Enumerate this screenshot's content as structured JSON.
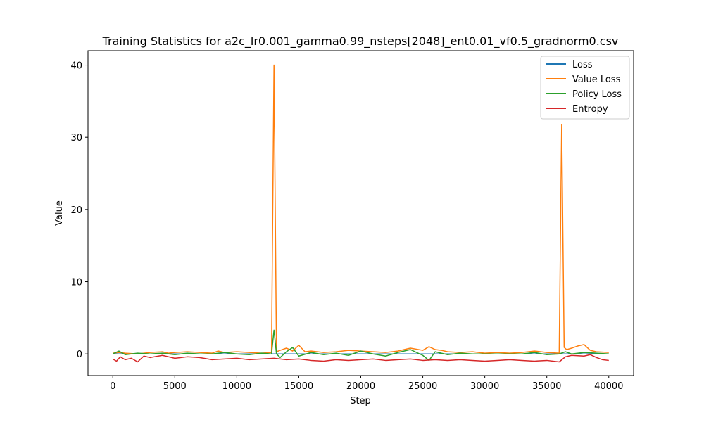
{
  "chart_data": {
    "type": "line",
    "title": "Training Statistics for a2c_lr0.001_gamma0.99_nsteps[2048]_ent0.01_vf0.5_gradnorm0.csv",
    "xlabel": "Step",
    "ylabel": "Value",
    "xlim": [
      -2000,
      42000
    ],
    "ylim": [
      -3,
      42
    ],
    "xticks": [
      0,
      5000,
      10000,
      15000,
      20000,
      25000,
      30000,
      35000,
      40000
    ],
    "yticks": [
      0,
      10,
      20,
      30,
      40
    ],
    "grid": false,
    "legend_position": "top-right",
    "series": [
      {
        "name": "Loss",
        "color": "#1f77b4",
        "x": [
          0,
          13000,
          13100,
          13300,
          15000,
          36000,
          36200,
          36400,
          38000,
          40000
        ],
        "y": [
          0,
          0,
          0,
          0,
          0,
          0,
          0,
          0,
          0,
          0
        ]
      },
      {
        "name": "Value Loss",
        "color": "#ff7f0e",
        "x": [
          0,
          500,
          1000,
          2000,
          3000,
          4000,
          4500,
          5000,
          6000,
          7000,
          8000,
          8500,
          9000,
          10000,
          11000,
          12000,
          12800,
          13000,
          13200,
          13500,
          14000,
          14500,
          15000,
          15500,
          16000,
          17000,
          18000,
          19000,
          20000,
          21000,
          22000,
          23000,
          23500,
          24000,
          25000,
          25500,
          26000,
          26500,
          27000,
          28000,
          29000,
          30000,
          31000,
          32000,
          33000,
          34000,
          35000,
          36000,
          36200,
          36400,
          36600,
          37000,
          37500,
          38000,
          38500,
          39000,
          40000
        ],
        "y": [
          0.1,
          0.2,
          0.1,
          0.0,
          0.2,
          0.3,
          0.1,
          0.2,
          0.3,
          0.2,
          0.1,
          0.4,
          0.2,
          0.3,
          0.2,
          0.1,
          0.2,
          40.0,
          0.3,
          0.5,
          0.8,
          0.4,
          1.2,
          0.3,
          0.4,
          0.2,
          0.3,
          0.5,
          0.4,
          0.3,
          0.2,
          0.4,
          0.6,
          0.8,
          0.5,
          1.0,
          0.6,
          0.5,
          0.3,
          0.2,
          0.3,
          0.1,
          0.2,
          0.1,
          0.2,
          0.4,
          0.2,
          0.1,
          31.8,
          0.9,
          0.6,
          0.8,
          1.1,
          1.3,
          0.5,
          0.3,
          0.2
        ]
      },
      {
        "name": "Policy Loss",
        "color": "#2ca02c",
        "x": [
          0,
          500,
          1000,
          2000,
          3000,
          4000,
          5000,
          6000,
          7000,
          8000,
          9000,
          10000,
          11000,
          12000,
          12800,
          13000,
          13200,
          13500,
          14000,
          14500,
          15000,
          16000,
          17000,
          18000,
          19000,
          20000,
          21000,
          22000,
          23000,
          24000,
          25000,
          25500,
          26000,
          27000,
          28000,
          29000,
          30000,
          31000,
          32000,
          33000,
          34000,
          35000,
          36000,
          36500,
          37000,
          38000,
          39000,
          40000
        ],
        "y": [
          0.0,
          0.4,
          -0.1,
          0.1,
          0.0,
          0.1,
          -0.1,
          0.1,
          0.0,
          0.0,
          0.2,
          0.0,
          -0.1,
          0.1,
          0.0,
          3.3,
          0.0,
          -0.5,
          0.3,
          0.9,
          -0.3,
          0.2,
          -0.1,
          0.1,
          -0.2,
          0.4,
          0.0,
          -0.3,
          0.2,
          0.6,
          -0.2,
          -0.9,
          0.3,
          -0.1,
          0.1,
          0.0,
          0.0,
          0.0,
          0.0,
          0.0,
          0.2,
          -0.1,
          0.0,
          0.3,
          0.0,
          0.2,
          0.1,
          0.0
        ]
      },
      {
        "name": "Entropy",
        "color": "#d62728",
        "x": [
          0,
          300,
          600,
          1000,
          1500,
          2000,
          2500,
          3000,
          4000,
          5000,
          6000,
          7000,
          8000,
          9000,
          10000,
          11000,
          12000,
          13000,
          14000,
          15000,
          16000,
          17000,
          18000,
          19000,
          20000,
          21000,
          22000,
          23000,
          24000,
          25000,
          26000,
          27000,
          28000,
          29000,
          30000,
          31000,
          32000,
          33000,
          34000,
          35000,
          36000,
          36500,
          37000,
          38000,
          38500,
          39000,
          39500,
          40000
        ],
        "y": [
          -0.7,
          -1.0,
          -0.4,
          -0.8,
          -0.6,
          -1.1,
          -0.3,
          -0.5,
          -0.2,
          -0.6,
          -0.4,
          -0.5,
          -0.8,
          -0.7,
          -0.6,
          -0.8,
          -0.7,
          -0.6,
          -0.8,
          -0.7,
          -0.9,
          -1.0,
          -0.8,
          -0.9,
          -0.8,
          -0.7,
          -0.9,
          -0.8,
          -0.7,
          -0.9,
          -0.8,
          -0.9,
          -0.8,
          -0.9,
          -1.0,
          -0.9,
          -0.8,
          -0.9,
          -1.0,
          -0.9,
          -1.1,
          -0.4,
          -0.2,
          -0.3,
          -0.1,
          -0.5,
          -0.8,
          -0.9
        ]
      }
    ]
  }
}
